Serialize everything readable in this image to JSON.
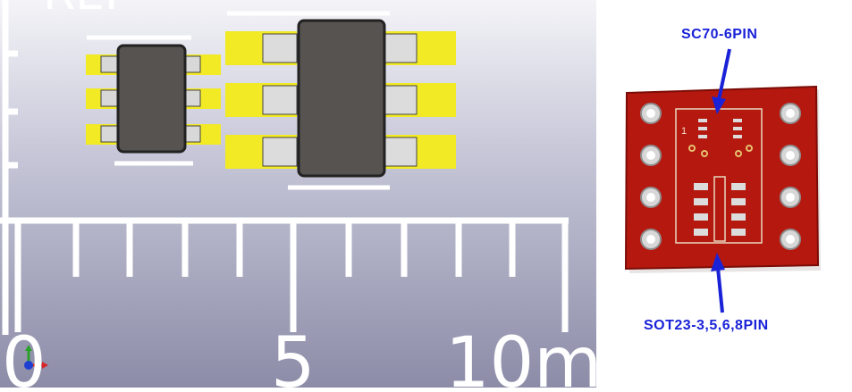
{
  "viewport": {
    "scale_labels": {
      "zero": "0",
      "five": "5",
      "ten": "10m"
    },
    "top_label_fragment": "REF"
  },
  "photo": {
    "top_label": "SC70-6PIN",
    "bottom_label": "SOT23-3,5,6,8PIN",
    "pin_one_mark": "1"
  },
  "colors": {
    "pad": "#f2ea24",
    "chip_body": "#575350",
    "pcb": "#b5180f",
    "label": "#1a22d8"
  }
}
